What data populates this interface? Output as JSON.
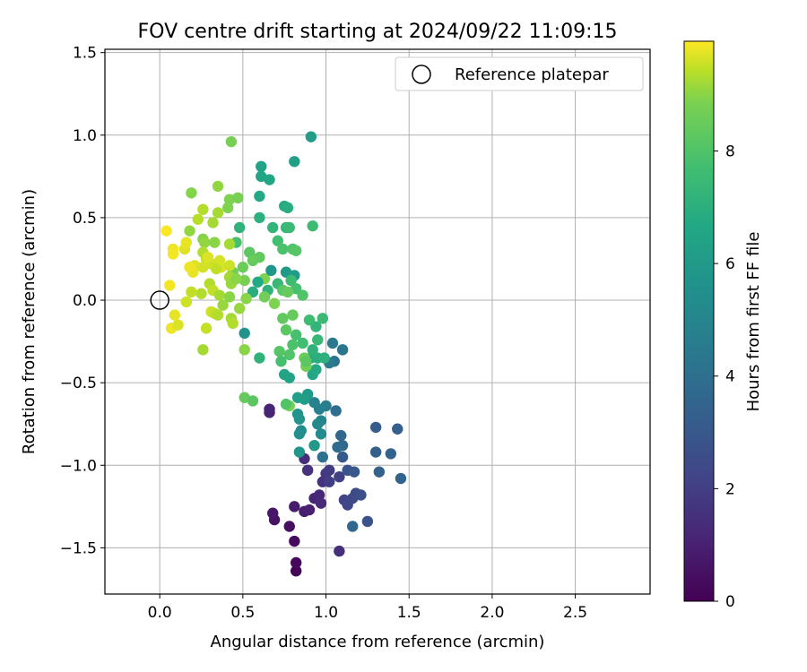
{
  "chart_data": {
    "type": "scatter",
    "title": "FOV centre drift starting at 2024/09/22 11:09:15",
    "xlabel": "Angular distance from reference (arcmin)",
    "ylabel": "Rotation from reference (arcmin)",
    "xlim": [
      -0.33,
      2.95
    ],
    "ylim": [
      -1.78,
      1.52
    ],
    "xticks": [
      "0.0",
      "0.5",
      "1.0",
      "1.5",
      "2.0",
      "2.5"
    ],
    "xtick_values": [
      0,
      0.5,
      1.0,
      1.5,
      2.0,
      2.5
    ],
    "yticks": [
      "1.5",
      "1.0",
      "0.5",
      "0.0",
      "−0.5",
      "−1.0",
      "−1.5"
    ],
    "ytick_values": [
      1.5,
      1.0,
      0.5,
      0.0,
      -0.5,
      -1.0,
      -1.5
    ],
    "grid": true,
    "legend": {
      "placement": "top-right",
      "label": "Reference platepar"
    },
    "reference_point": {
      "x": 0.0,
      "y": 0.0
    },
    "colorbar": {
      "label": "Hours from first FF file",
      "min": 0,
      "max": 9.95,
      "ticks": [
        "0",
        "2",
        "4",
        "6",
        "8"
      ],
      "tick_values": [
        0,
        2,
        4,
        6,
        8
      ],
      "colormap": "viridis"
    },
    "points": [
      {
        "x": 0.82,
        "y": -1.64,
        "h": 0.1
      },
      {
        "x": 0.82,
        "y": -1.59,
        "h": 0.2
      },
      {
        "x": 0.81,
        "y": -1.46,
        "h": 0.3
      },
      {
        "x": 0.78,
        "y": -1.37,
        "h": 0.4
      },
      {
        "x": 0.69,
        "y": -1.33,
        "h": 0.5
      },
      {
        "x": 0.68,
        "y": -1.29,
        "h": 0.6
      },
      {
        "x": 0.81,
        "y": -1.25,
        "h": 0.7
      },
      {
        "x": 0.87,
        "y": -1.28,
        "h": 0.8
      },
      {
        "x": 0.9,
        "y": -1.27,
        "h": 0.9
      },
      {
        "x": 0.93,
        "y": -1.2,
        "h": 1.0
      },
      {
        "x": 0.96,
        "y": -1.18,
        "h": 1.1
      },
      {
        "x": 0.97,
        "y": -1.23,
        "h": 1.2
      },
      {
        "x": 0.66,
        "y": -0.66,
        "h": 1.0
      },
      {
        "x": 0.66,
        "y": -0.68,
        "h": 1.0
      },
      {
        "x": 1.08,
        "y": -1.52,
        "h": 1.3
      },
      {
        "x": 0.87,
        "y": -0.96,
        "h": 1.3
      },
      {
        "x": 0.89,
        "y": -1.03,
        "h": 1.4
      },
      {
        "x": 0.98,
        "y": -1.1,
        "h": 1.5
      },
      {
        "x": 1.0,
        "y": -1.05,
        "h": 1.6
      },
      {
        "x": 1.02,
        "y": -1.03,
        "h": 1.7
      },
      {
        "x": 1.02,
        "y": -1.1,
        "h": 1.8
      },
      {
        "x": 1.08,
        "y": -1.07,
        "h": 1.9
      },
      {
        "x": 1.11,
        "y": -1.21,
        "h": 2.0
      },
      {
        "x": 1.13,
        "y": -1.24,
        "h": 2.1
      },
      {
        "x": 1.16,
        "y": -1.2,
        "h": 2.2
      },
      {
        "x": 1.18,
        "y": -1.17,
        "h": 2.3
      },
      {
        "x": 1.21,
        "y": -1.18,
        "h": 2.4
      },
      {
        "x": 1.25,
        "y": -1.34,
        "h": 2.5
      },
      {
        "x": 1.13,
        "y": -1.03,
        "h": 2.6
      },
      {
        "x": 1.17,
        "y": -1.04,
        "h": 2.7
      },
      {
        "x": 1.1,
        "y": -0.95,
        "h": 2.8
      },
      {
        "x": 1.3,
        "y": -0.77,
        "h": 2.9
      },
      {
        "x": 1.3,
        "y": -0.92,
        "h": 3.0
      },
      {
        "x": 1.32,
        "y": -1.04,
        "h": 3.1
      },
      {
        "x": 1.45,
        "y": -1.08,
        "h": 3.2
      },
      {
        "x": 1.09,
        "y": -0.82,
        "h": 3.3
      },
      {
        "x": 1.1,
        "y": -0.88,
        "h": 3.4
      },
      {
        "x": 1.07,
        "y": -0.89,
        "h": 3.5
      },
      {
        "x": 1.06,
        "y": -0.67,
        "h": 3.6
      },
      {
        "x": 0.98,
        "y": -0.95,
        "h": 3.7
      },
      {
        "x": 1.05,
        "y": -0.37,
        "h": 3.8
      },
      {
        "x": 1.1,
        "y": -0.3,
        "h": 3.9
      },
      {
        "x": 1.04,
        "y": -0.26,
        "h": 4.0
      },
      {
        "x": 1.02,
        "y": -0.38,
        "h": 4.1
      },
      {
        "x": 1.0,
        "y": -0.64,
        "h": 4.2
      },
      {
        "x": 0.96,
        "y": -0.66,
        "h": 4.3
      },
      {
        "x": 0.93,
        "y": -0.62,
        "h": 4.4
      },
      {
        "x": 0.97,
        "y": -0.73,
        "h": 4.5
      },
      {
        "x": 0.95,
        "y": -0.75,
        "h": 4.6
      },
      {
        "x": 0.97,
        "y": -0.81,
        "h": 4.7
      },
      {
        "x": 0.85,
        "y": -0.79,
        "h": 4.8
      },
      {
        "x": 0.84,
        "y": -0.81,
        "h": 4.9
      },
      {
        "x": 0.83,
        "y": -0.69,
        "h": 5.0
      },
      {
        "x": 0.84,
        "y": -0.72,
        "h": 5.1
      },
      {
        "x": 0.84,
        "y": -0.92,
        "h": 5.2
      },
      {
        "x": 0.93,
        "y": -0.88,
        "h": 5.3
      },
      {
        "x": 0.89,
        "y": -0.57,
        "h": 5.4
      },
      {
        "x": 0.87,
        "y": -0.6,
        "h": 5.5
      },
      {
        "x": 0.83,
        "y": -0.59,
        "h": 5.6
      },
      {
        "x": 0.78,
        "y": -0.47,
        "h": 5.7
      },
      {
        "x": 0.75,
        "y": -0.45,
        "h": 5.8
      },
      {
        "x": 0.92,
        "y": -0.45,
        "h": 5.9
      },
      {
        "x": 0.94,
        "y": -0.42,
        "h": 6.0
      },
      {
        "x": 0.91,
        "y": -0.35,
        "h": 6.1
      },
      {
        "x": 0.95,
        "y": -0.35,
        "h": 6.2
      },
      {
        "x": 0.99,
        "y": -0.35,
        "h": 6.3
      },
      {
        "x": 0.92,
        "y": -0.3,
        "h": 6.4
      },
      {
        "x": 0.94,
        "y": -0.16,
        "h": 6.5
      },
      {
        "x": 0.95,
        "y": -0.24,
        "h": 6.6
      },
      {
        "x": 0.98,
        "y": -0.11,
        "h": 6.7
      },
      {
        "x": 0.9,
        "y": -0.12,
        "h": 6.8
      },
      {
        "x": 0.86,
        "y": -0.26,
        "h": 6.9
      },
      {
        "x": 0.82,
        "y": -0.21,
        "h": 7.0
      },
      {
        "x": 0.8,
        "y": -0.27,
        "h": 7.1
      },
      {
        "x": 0.78,
        "y": -0.33,
        "h": 7.2
      },
      {
        "x": 0.72,
        "y": -0.31,
        "h": 7.3
      },
      {
        "x": 0.76,
        "y": -0.18,
        "h": 7.4
      },
      {
        "x": 0.74,
        "y": -0.11,
        "h": 7.5
      },
      {
        "x": 0.8,
        "y": -0.09,
        "h": 7.6
      },
      {
        "x": 0.87,
        "y": -0.35,
        "h": 7.7
      },
      {
        "x": 0.88,
        "y": -0.4,
        "h": 7.8
      },
      {
        "x": 0.78,
        "y": -0.64,
        "h": 7.9
      },
      {
        "x": 1.43,
        "y": -0.78,
        "h": 3.0
      },
      {
        "x": 1.39,
        "y": -0.93,
        "h": 3.2
      },
      {
        "x": 1.16,
        "y": -1.37,
        "h": 3.4
      },
      {
        "x": 0.91,
        "y": 0.99,
        "h": 5.5
      },
      {
        "x": 0.81,
        "y": 0.84,
        "h": 5.6
      },
      {
        "x": 0.61,
        "y": 0.81,
        "h": 5.7
      },
      {
        "x": 0.61,
        "y": 0.75,
        "h": 5.8
      },
      {
        "x": 0.66,
        "y": 0.73,
        "h": 5.9
      },
      {
        "x": 0.6,
        "y": 0.63,
        "h": 6.0
      },
      {
        "x": 0.75,
        "y": 0.57,
        "h": 6.1
      },
      {
        "x": 0.77,
        "y": 0.56,
        "h": 6.2
      },
      {
        "x": 0.6,
        "y": 0.5,
        "h": 6.3
      },
      {
        "x": 0.48,
        "y": 0.44,
        "h": 6.4
      },
      {
        "x": 0.68,
        "y": 0.44,
        "h": 6.5
      },
      {
        "x": 0.76,
        "y": 0.44,
        "h": 6.6
      },
      {
        "x": 0.78,
        "y": 0.44,
        "h": 6.7
      },
      {
        "x": 0.92,
        "y": 0.45,
        "h": 6.8
      },
      {
        "x": 0.71,
        "y": 0.36,
        "h": 6.9
      },
      {
        "x": 0.46,
        "y": 0.35,
        "h": 7.0
      },
      {
        "x": 0.74,
        "y": 0.31,
        "h": 7.1
      },
      {
        "x": 0.8,
        "y": 0.31,
        "h": 7.2
      },
      {
        "x": 0.82,
        "y": 0.3,
        "h": 7.3
      },
      {
        "x": 0.54,
        "y": 0.29,
        "h": 7.4
      },
      {
        "x": 0.6,
        "y": 0.26,
        "h": 7.5
      },
      {
        "x": 0.56,
        "y": 0.24,
        "h": 7.6
      },
      {
        "x": 0.5,
        "y": 0.2,
        "h": 7.7
      },
      {
        "x": 0.44,
        "y": 0.17,
        "h": 7.8
      },
      {
        "x": 0.51,
        "y": 0.12,
        "h": 7.9
      },
      {
        "x": 0.63,
        "y": 0.13,
        "h": 8.0
      },
      {
        "x": 0.67,
        "y": 0.18,
        "h": 5.2
      },
      {
        "x": 0.76,
        "y": 0.17,
        "h": 5.3
      },
      {
        "x": 0.81,
        "y": 0.15,
        "h": 5.4
      },
      {
        "x": 0.59,
        "y": 0.11,
        "h": 6.0
      },
      {
        "x": 0.56,
        "y": 0.05,
        "h": 6.2
      },
      {
        "x": 0.65,
        "y": 0.06,
        "h": 6.4
      },
      {
        "x": 0.71,
        "y": 0.1,
        "h": 6.6
      },
      {
        "x": 0.79,
        "y": 0.12,
        "h": 6.8
      },
      {
        "x": 0.82,
        "y": 0.07,
        "h": 7.0
      },
      {
        "x": 0.86,
        "y": 0.03,
        "h": 7.2
      },
      {
        "x": 0.74,
        "y": 0.06,
        "h": 7.4
      },
      {
        "x": 0.77,
        "y": 0.05,
        "h": 7.6
      },
      {
        "x": 0.63,
        "y": 0.02,
        "h": 7.8
      },
      {
        "x": 0.69,
        "y": -0.02,
        "h": 8.0
      },
      {
        "x": 0.52,
        "y": 0.01,
        "h": 8.2
      },
      {
        "x": 0.48,
        "y": -0.05,
        "h": 8.4
      },
      {
        "x": 0.43,
        "y": -0.11,
        "h": 8.6
      },
      {
        "x": 0.44,
        "y": -0.14,
        "h": 8.8
      },
      {
        "x": 0.51,
        "y": -0.2,
        "h": 5.0
      },
      {
        "x": 0.6,
        "y": -0.35,
        "h": 6.4
      },
      {
        "x": 0.51,
        "y": -0.3,
        "h": 8.2
      },
      {
        "x": 0.51,
        "y": -0.59,
        "h": 7.6
      },
      {
        "x": 0.56,
        "y": -0.61,
        "h": 7.4
      },
      {
        "x": 0.76,
        "y": -0.63,
        "h": 7.2
      },
      {
        "x": 0.73,
        "y": -0.37,
        "h": 7.0
      },
      {
        "x": 0.88,
        "y": -0.37,
        "h": 7.4
      },
      {
        "x": 0.43,
        "y": 0.96,
        "h": 7.9
      },
      {
        "x": 0.42,
        "y": 0.61,
        "h": 8.0
      },
      {
        "x": 0.47,
        "y": 0.62,
        "h": 7.9
      },
      {
        "x": 0.41,
        "y": 0.56,
        "h": 8.0
      },
      {
        "x": 0.35,
        "y": 0.69,
        "h": 8.3
      },
      {
        "x": 0.35,
        "y": 0.53,
        "h": 8.6
      },
      {
        "x": 0.32,
        "y": 0.47,
        "h": 8.6
      },
      {
        "x": 0.26,
        "y": 0.55,
        "h": 8.8
      },
      {
        "x": 0.23,
        "y": 0.49,
        "h": 8.9
      },
      {
        "x": 0.19,
        "y": 0.65,
        "h": 8.1
      },
      {
        "x": 0.18,
        "y": 0.42,
        "h": 8.3
      },
      {
        "x": 0.26,
        "y": 0.37,
        "h": 8.1
      },
      {
        "x": 0.27,
        "y": 0.35,
        "h": 8.3
      },
      {
        "x": 0.33,
        "y": 0.35,
        "h": 8.2
      },
      {
        "x": 0.42,
        "y": 0.34,
        "h": 8.6
      },
      {
        "x": 0.26,
        "y": 0.29,
        "h": 8.8
      },
      {
        "x": 0.28,
        "y": 0.25,
        "h": 9.0
      },
      {
        "x": 0.31,
        "y": 0.22,
        "h": 9.2
      },
      {
        "x": 0.36,
        "y": 0.24,
        "h": 9.3
      },
      {
        "x": 0.37,
        "y": 0.2,
        "h": 9.4
      },
      {
        "x": 0.34,
        "y": 0.19,
        "h": 9.0
      },
      {
        "x": 0.42,
        "y": 0.21,
        "h": 9.2
      },
      {
        "x": 0.42,
        "y": 0.14,
        "h": 8.6
      },
      {
        "x": 0.43,
        "y": 0.1,
        "h": 8.4
      },
      {
        "x": 0.46,
        "y": 0.13,
        "h": 8.2
      },
      {
        "x": 0.3,
        "y": 0.1,
        "h": 8.8
      },
      {
        "x": 0.32,
        "y": 0.06,
        "h": 9.0
      },
      {
        "x": 0.36,
        "y": 0.03,
        "h": 8.6
      },
      {
        "x": 0.38,
        "y": -0.03,
        "h": 8.4
      },
      {
        "x": 0.42,
        "y": 0.02,
        "h": 8.2
      },
      {
        "x": 0.25,
        "y": 0.04,
        "h": 8.8
      },
      {
        "x": 0.19,
        "y": 0.05,
        "h": 9.0
      },
      {
        "x": 0.16,
        "y": -0.01,
        "h": 9.2
      },
      {
        "x": 0.21,
        "y": 0.21,
        "h": 9.5
      },
      {
        "x": 0.2,
        "y": 0.17,
        "h": 9.6
      },
      {
        "x": 0.18,
        "y": 0.2,
        "h": 9.7
      },
      {
        "x": 0.15,
        "y": 0.31,
        "h": 9.5
      },
      {
        "x": 0.16,
        "y": 0.35,
        "h": 9.6
      },
      {
        "x": 0.08,
        "y": 0.31,
        "h": 9.7
      },
      {
        "x": 0.08,
        "y": 0.28,
        "h": 9.8
      },
      {
        "x": 0.04,
        "y": 0.42,
        "h": 9.9
      },
      {
        "x": 0.06,
        "y": 0.09,
        "h": 9.8
      },
      {
        "x": 0.09,
        "y": -0.09,
        "h": 9.6
      },
      {
        "x": 0.07,
        "y": -0.17,
        "h": 9.7
      },
      {
        "x": 0.11,
        "y": -0.15,
        "h": 9.4
      },
      {
        "x": 0.31,
        "y": -0.07,
        "h": 9.2
      },
      {
        "x": 0.33,
        "y": -0.08,
        "h": 9.0
      },
      {
        "x": 0.35,
        "y": -0.09,
        "h": 8.8
      },
      {
        "x": 0.28,
        "y": -0.17,
        "h": 9.1
      },
      {
        "x": 0.26,
        "y": -0.3,
        "h": 8.6
      },
      {
        "x": 0.26,
        "y": 0.2,
        "h": 9.3
      },
      {
        "x": 0.29,
        "y": 0.26,
        "h": 9.4
      }
    ]
  }
}
